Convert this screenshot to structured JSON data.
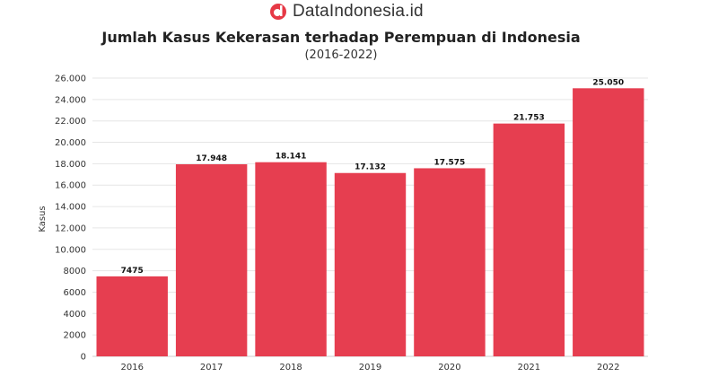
{
  "brand": {
    "name": "DataIndonesia.id",
    "logo_icon": "brand-logo-icon",
    "logo_color": "#e63946"
  },
  "chart_data": {
    "type": "bar",
    "title": "Jumlah Kasus Kekerasan terhadap Perempuan di Indonesia",
    "subtitle": "(2016-2022)",
    "xlabel": "",
    "ylabel": "Kasus",
    "categories": [
      "2016",
      "2017",
      "2018",
      "2019",
      "2020",
      "2021",
      "2022"
    ],
    "values": [
      7475,
      17948,
      18141,
      17132,
      17575,
      21753,
      25050
    ],
    "value_labels": [
      "7475",
      "17.948",
      "18.141",
      "17.132",
      "17.575",
      "21.753",
      "25.050"
    ],
    "ylim": [
      0,
      26000
    ],
    "yticks": [
      0,
      2000,
      4000,
      6000,
      8000,
      10000,
      12000,
      14000,
      16000,
      18000,
      20000,
      22000,
      24000,
      26000
    ],
    "ytick_labels": [
      "0",
      "2000",
      "4000",
      "6000",
      "8000",
      "10.000",
      "12.000",
      "14.000",
      "16.000",
      "18.000",
      "20.000",
      "22.000",
      "24.000",
      "26.000"
    ],
    "grid": true,
    "bar_color": "#e63e50"
  }
}
